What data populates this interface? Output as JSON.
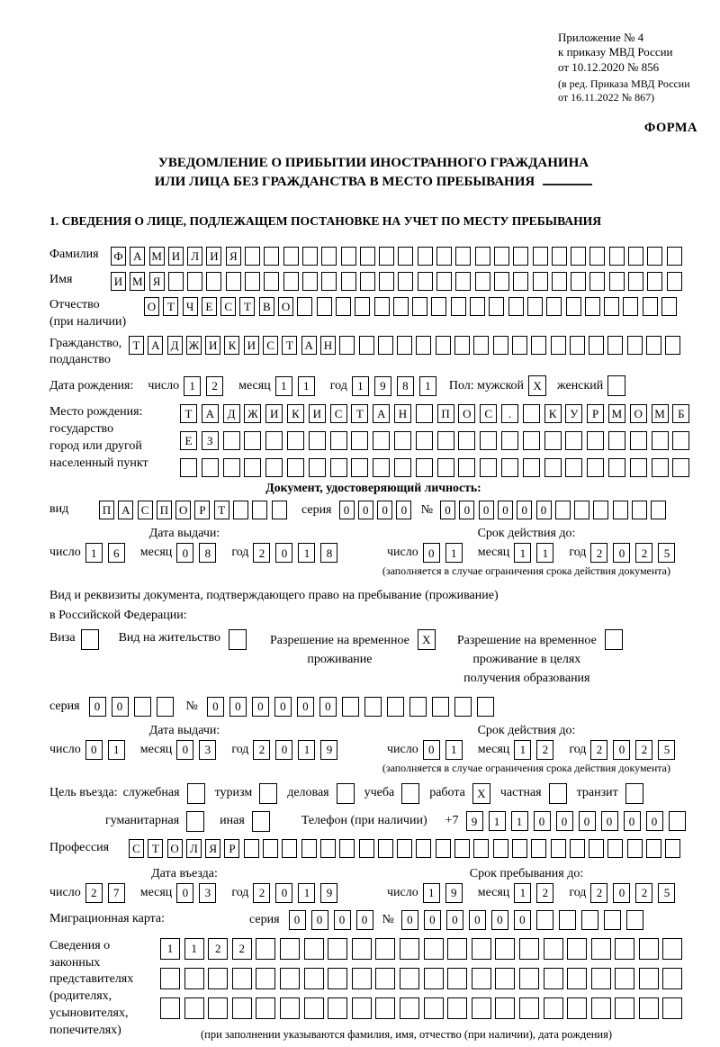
{
  "header": {
    "appendix": [
      "Приложение № 4",
      "к приказу МВД России",
      "от 10.12.2020 № 856"
    ],
    "appendix_note": [
      "(в ред. Приказа МВД России",
      "от 16.11.2022 № 867)"
    ],
    "forma": "ФОРМА",
    "title1": "УВЕДОМЛЕНИЕ О ПРИБЫТИИ ИНОСТРАННОГО ГРАЖДАНИНА",
    "title2": "ИЛИ ЛИЦА БЕЗ ГРАЖДАНСТВА В МЕСТО ПРЕБЫВАНИЯ",
    "section1": "1. СВЕДЕНИЯ О ЛИЦЕ, ПОДЛЕЖАЩЕМ ПОСТАНОВКЕ НА УЧЕТ ПО МЕСТУ ПРЕБЫВАНИЯ"
  },
  "labels": {
    "day": "число",
    "month": "месяц",
    "year": "год",
    "series": "серия",
    "number": "№",
    "issue_date": "Дата выдачи:",
    "valid_until": "Срок действия до:",
    "validity_note": "(заполняется в случае ограничения срока действия документа)",
    "entry_date": "Дата въезда:",
    "stay_until": "Срок пребывания до:",
    "phone": "Телефон (при наличии)",
    "phone_prefix": "+7"
  },
  "person": {
    "surname": {
      "label": "Фамилия",
      "chars": "ФАМИЛИЯ",
      "total": 30
    },
    "name": {
      "label": "Имя",
      "chars": "ИМЯ",
      "total": 30
    },
    "patronymic": {
      "label1": "Отчество",
      "label2": "(при наличии)",
      "chars": "ОТЧЕСТВО",
      "total": 28
    },
    "citizenship": {
      "label1": "Гражданство,",
      "label2": "подданство",
      "chars": "ТАДЖИКИСТАН",
      "total": 29
    },
    "birth_label": "Дата рождения:",
    "birth": {
      "day": {
        "chars": "12",
        "total": 2
      },
      "month": {
        "chars": "11",
        "total": 2
      },
      "year": {
        "chars": "1981",
        "total": 4
      }
    },
    "sex": {
      "male_label": "Пол: мужской",
      "male": {
        "chars": "X",
        "total": 1
      },
      "female_label": "женский",
      "female": {
        "chars": "",
        "total": 1
      }
    },
    "birthplace": {
      "label": [
        "Место рождения:",
        "государство",
        "город или другой",
        "населенный пункт"
      ],
      "rows": [
        {
          "chars": "ТАДЖИКИСТАН ПОС. КУРМОМБ",
          "total": 24
        },
        {
          "chars": "ЕЗ",
          "total": 24
        },
        {
          "chars": "",
          "total": 24
        }
      ]
    }
  },
  "identity_doc": {
    "heading": "Документ, удостоверяющий личность:",
    "kind_label": "вид",
    "kind": {
      "chars": "ПАСПОРТ",
      "total": 10
    },
    "series": {
      "chars": "0000",
      "total": 4
    },
    "number": {
      "chars": "000000",
      "total": 12
    },
    "issue": {
      "day": {
        "chars": "16",
        "total": 2
      },
      "month": {
        "chars": "08",
        "total": 2
      },
      "year": {
        "chars": "2018",
        "total": 4
      }
    },
    "valid": {
      "day": {
        "chars": "01",
        "total": 2
      },
      "month": {
        "chars": "11",
        "total": 2
      },
      "year": {
        "chars": "2025",
        "total": 4
      }
    }
  },
  "residence_doc": {
    "intro1": "Вид и реквизиты документа, подтверждающего право на пребывание (проживание)",
    "intro2": "в Российской Федерации:",
    "options": [
      {
        "label": [
          "Виза"
        ],
        "box": {
          "chars": "",
          "total": 1
        }
      },
      {
        "label": [
          "Вид на жительство"
        ],
        "box": {
          "chars": "",
          "total": 1
        }
      },
      {
        "label": [
          "Разрешение на временное",
          "проживание"
        ],
        "box": {
          "chars": "X",
          "total": 1
        }
      },
      {
        "label": [
          "Разрешение на временное",
          "проживание в целях",
          "получения образования"
        ],
        "box": {
          "chars": "",
          "total": 1
        }
      }
    ],
    "series": {
      "chars": "00",
      "total": 4
    },
    "number": {
      "chars": "000000",
      "total": 13
    },
    "issue": {
      "day": {
        "chars": "01",
        "total": 2
      },
      "month": {
        "chars": "03",
        "total": 2
      },
      "year": {
        "chars": "2019",
        "total": 4
      }
    },
    "valid": {
      "day": {
        "chars": "01",
        "total": 2
      },
      "month": {
        "chars": "12",
        "total": 2
      },
      "year": {
        "chars": "2025",
        "total": 4
      }
    }
  },
  "trip": {
    "purpose_label": "Цель въезда:",
    "purpose_options": [
      {
        "label": "служебная",
        "box": {
          "chars": "",
          "total": 1
        }
      },
      {
        "label": "туризм",
        "box": {
          "chars": "",
          "total": 1
        }
      },
      {
        "label": "деловая",
        "box": {
          "chars": "",
          "total": 1
        }
      },
      {
        "label": "учеба",
        "box": {
          "chars": "",
          "total": 1
        }
      },
      {
        "label": "работа",
        "box": {
          "chars": "X",
          "total": 1
        }
      },
      {
        "label": "частная",
        "box": {
          "chars": "",
          "total": 1
        }
      },
      {
        "label": "транзит",
        "box": {
          "chars": "",
          "total": 1
        }
      }
    ],
    "purpose_options2": [
      {
        "label": "гуманитарная",
        "box": {
          "chars": "",
          "total": 1
        }
      },
      {
        "label": "иная",
        "box": {
          "chars": "",
          "total": 1
        }
      }
    ],
    "phone": {
      "chars": "911000000",
      "total": 10
    },
    "profession_label": "Профессия",
    "profession": {
      "chars": "СТОЛЯР",
      "total": 29
    },
    "entry": {
      "day": {
        "chars": "27",
        "total": 2
      },
      "month": {
        "chars": "03",
        "total": 2
      },
      "year": {
        "chars": "2019",
        "total": 4
      }
    },
    "stay": {
      "day": {
        "chars": "19",
        "total": 2
      },
      "month": {
        "chars": "12",
        "total": 2
      },
      "year": {
        "chars": "2025",
        "total": 4
      }
    },
    "migration_card_label": "Миграционная карта:",
    "migration_series": {
      "chars": "0000",
      "total": 4
    },
    "migration_number": {
      "chars": "000000",
      "total": 11
    }
  },
  "reps": {
    "label": [
      "Сведения о",
      "законных",
      "представителях",
      "(родителях,",
      "усыновителях,",
      "попечителях)"
    ],
    "rows": [
      {
        "chars": "1122",
        "total": 22
      },
      {
        "chars": "",
        "total": 22
      },
      {
        "chars": "",
        "total": 22
      }
    ],
    "note": "(при заполнении указываются фамилия, имя, отчество (при наличии), дата рождения)"
  }
}
